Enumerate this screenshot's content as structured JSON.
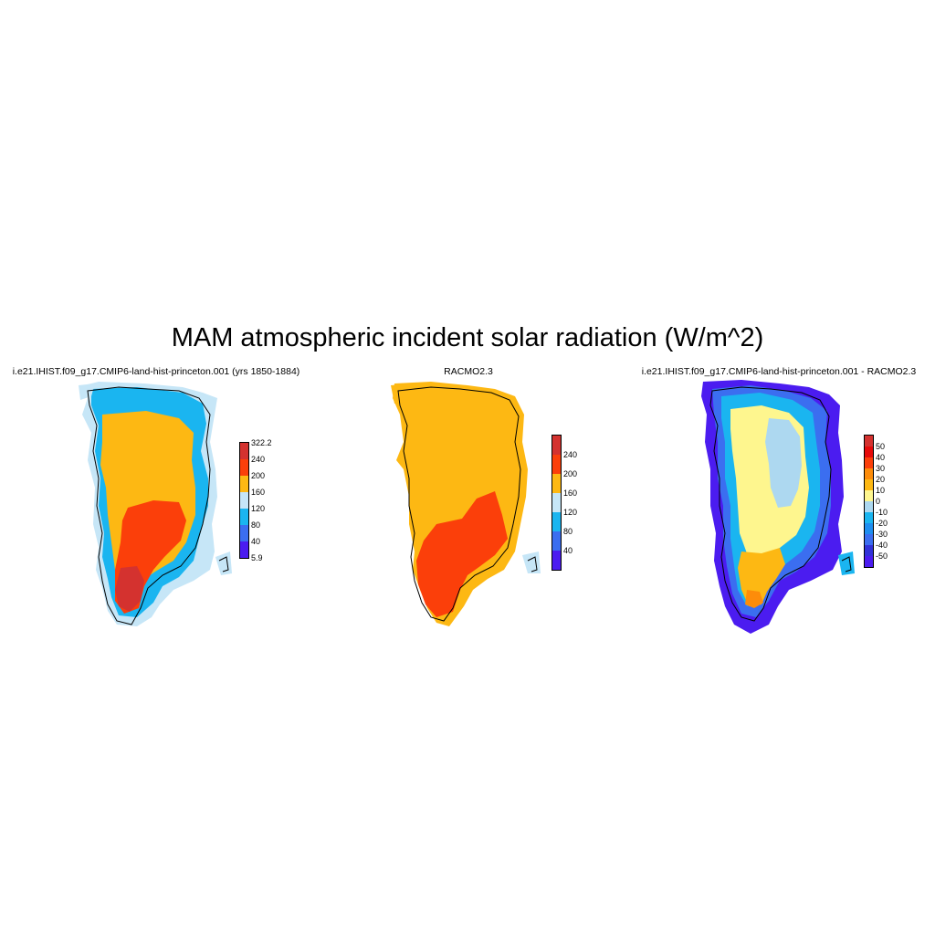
{
  "figure": {
    "title": "MAM atmospheric incident solar radiation (W/m^2)"
  },
  "panels": [
    {
      "id": "model",
      "title": "i.e21.IHIST.f09_g17.CMIP6-land-hist-princeton.001 (yrs 1850-1884)",
      "colorbar": {
        "labels": [
          "322.2",
          "240",
          "200",
          "160",
          "120",
          "80",
          "40",
          "5.9"
        ],
        "colors": [
          "#d4322f",
          "#fb3f0a",
          "#fdb813",
          "#c6e6f7",
          "#1ab5f0",
          "#3b6ef0",
          "#4b1cf0"
        ]
      }
    },
    {
      "id": "obs",
      "title": "RACMO2.3",
      "colorbar": {
        "labels": [
          "240",
          "200",
          "160",
          "120",
          "80",
          "40"
        ],
        "colors": [
          "#d4322f",
          "#fb3f0a",
          "#fdb813",
          "#c6e6f7",
          "#1ab5f0",
          "#3b6ef0",
          "#4b1cf0"
        ]
      }
    },
    {
      "id": "diff",
      "title": "i.e21.IHIST.f09_g17.CMIP6-land-hist-princeton.001 - RACMO2.3",
      "colorbar": {
        "labels": [
          "50",
          "40",
          "30",
          "20",
          "10",
          "0",
          "-10",
          "-20",
          "-30",
          "-40",
          "-50"
        ],
        "colors": [
          "#d4322f",
          "#e60a0a",
          "#fb3f0a",
          "#fd8c0a",
          "#fdb813",
          "#fef68e",
          "#add8f0",
          "#1ab5f0",
          "#1e8ef0",
          "#3b6ef0",
          "#3232d8",
          "#4b1cf0"
        ]
      }
    }
  ]
}
